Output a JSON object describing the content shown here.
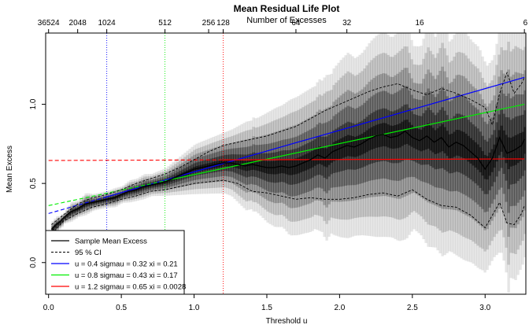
{
  "chart_data": {
    "type": "line",
    "title": "Mean Residual Life Plot",
    "subtitle": "Number of Excesses",
    "xlabel": "Threshold u",
    "ylabel": "Mean Excess",
    "xlim": [
      -0.02,
      3.28
    ],
    "ylim": [
      -0.2,
      1.45
    ],
    "x_ticks": [
      0.0,
      0.5,
      1.0,
      1.5,
      2.0,
      2.5,
      3.0
    ],
    "x_tick_labels": [
      "0.0",
      "0.5",
      "1.0",
      "1.5",
      "2.0",
      "2.5",
      "3.0"
    ],
    "y_ticks": [
      0.0,
      0.5,
      1.0
    ],
    "y_tick_labels": [
      "0.0",
      "0.5",
      "1.0"
    ],
    "top_axis": {
      "label": "Number of Excesses",
      "ticks": [
        {
          "x": 0.0,
          "label": "36524"
        },
        {
          "x": 0.2,
          "label": "2048"
        },
        {
          "x": 0.4,
          "label": "1024"
        },
        {
          "x": 0.8,
          "label": "512"
        },
        {
          "x": 1.1,
          "label": "256"
        },
        {
          "x": 1.2,
          "label": "128"
        },
        {
          "x": 1.7,
          "label": "64"
        },
        {
          "x": 2.05,
          "label": "32"
        },
        {
          "x": 2.55,
          "label": "16"
        },
        {
          "x": 3.27,
          "label": "6"
        }
      ]
    },
    "mean_excess": {
      "x": [
        0.02,
        0.05,
        0.08,
        0.1,
        0.15,
        0.2,
        0.25,
        0.3,
        0.35,
        0.4,
        0.45,
        0.5,
        0.55,
        0.6,
        0.65,
        0.7,
        0.75,
        0.8,
        0.85,
        0.9,
        0.95,
        1.0,
        1.05,
        1.1,
        1.15,
        1.2,
        1.25,
        1.3,
        1.35,
        1.4,
        1.45,
        1.5,
        1.55,
        1.6,
        1.65,
        1.7,
        1.75,
        1.8,
        1.85,
        1.9,
        1.95,
        2.0,
        2.05,
        2.1,
        2.15,
        2.2,
        2.25,
        2.3,
        2.35,
        2.4,
        2.45,
        2.5,
        2.55,
        2.6,
        2.65,
        2.7,
        2.75,
        2.8,
        2.85,
        2.9,
        2.95,
        3.0,
        3.05,
        3.1,
        3.15,
        3.2,
        3.25,
        3.27
      ],
      "y": [
        0.21,
        0.24,
        0.26,
        0.28,
        0.32,
        0.34,
        0.37,
        0.38,
        0.39,
        0.4,
        0.41,
        0.43,
        0.45,
        0.46,
        0.48,
        0.49,
        0.5,
        0.51,
        0.53,
        0.55,
        0.57,
        0.59,
        0.6,
        0.61,
        0.62,
        0.63,
        0.63,
        0.62,
        0.61,
        0.62,
        0.61,
        0.6,
        0.6,
        0.61,
        0.6,
        0.61,
        0.63,
        0.65,
        0.68,
        0.66,
        0.7,
        0.72,
        0.74,
        0.73,
        0.75,
        0.78,
        0.8,
        0.81,
        0.79,
        0.8,
        0.83,
        0.79,
        0.77,
        0.8,
        0.76,
        0.79,
        0.73,
        0.76,
        0.74,
        0.7,
        0.66,
        0.59,
        0.66,
        0.79,
        0.69,
        0.71,
        0.74,
        0.78
      ]
    },
    "ci_upper": {
      "x": [
        0.02,
        0.1,
        0.2,
        0.3,
        0.4,
        0.5,
        0.6,
        0.7,
        0.8,
        0.9,
        1.0,
        1.1,
        1.2,
        1.3,
        1.4,
        1.5,
        1.6,
        1.7,
        1.8,
        1.9,
        2.0,
        2.1,
        2.2,
        2.3,
        2.4,
        2.5,
        2.6,
        2.7,
        2.8,
        2.9,
        3.0,
        3.05,
        3.1,
        3.15,
        3.2,
        3.25,
        3.27
      ],
      "y": [
        0.24,
        0.3,
        0.37,
        0.41,
        0.43,
        0.46,
        0.5,
        0.53,
        0.56,
        0.6,
        0.65,
        0.7,
        0.74,
        0.76,
        0.78,
        0.8,
        0.83,
        0.86,
        0.91,
        0.96,
        1.0,
        1.04,
        1.08,
        1.11,
        1.13,
        1.09,
        1.06,
        1.1,
        1.07,
        1.03,
        0.98,
        0.87,
        1.07,
        1.2,
        1.07,
        1.13,
        1.17
      ]
    },
    "ci_lower": {
      "x": [
        0.02,
        0.1,
        0.2,
        0.3,
        0.4,
        0.5,
        0.6,
        0.7,
        0.8,
        0.9,
        1.0,
        1.1,
        1.2,
        1.3,
        1.4,
        1.5,
        1.6,
        1.7,
        1.8,
        1.9,
        2.0,
        2.1,
        2.2,
        2.3,
        2.4,
        2.5,
        2.6,
        2.7,
        2.8,
        2.9,
        3.0,
        3.05,
        3.1,
        3.15,
        3.2,
        3.25,
        3.27
      ],
      "y": [
        0.18,
        0.26,
        0.31,
        0.35,
        0.37,
        0.4,
        0.42,
        0.45,
        0.46,
        0.48,
        0.5,
        0.51,
        0.52,
        0.5,
        0.45,
        0.44,
        0.42,
        0.4,
        0.41,
        0.4,
        0.4,
        0.41,
        0.43,
        0.44,
        0.42,
        0.46,
        0.4,
        0.36,
        0.35,
        0.3,
        0.22,
        0.3,
        0.38,
        0.25,
        0.24,
        0.31,
        0.36
      ]
    },
    "fits": [
      {
        "name": "u = 0.4 sigmau = 0.32 xi = 0.21",
        "u": 0.4,
        "color": "#0000ff",
        "x0": 0.0,
        "y0": 0.31,
        "x1": 3.27,
        "y1": 1.17
      },
      {
        "name": "u = 0.8 sigmau = 0.43 xi = 0.17",
        "u": 0.8,
        "color": "#00ee00",
        "x0": 0.0,
        "y0": 0.36,
        "x1": 3.27,
        "y1": 1.0
      },
      {
        "name": "u = 1.2 sigmau = 0.65 xi = 0.0028",
        "u": 1.2,
        "color": "#ff0000",
        "x0": 0.0,
        "y0": 0.645,
        "x1": 3.27,
        "y1": 0.655
      }
    ],
    "legend": {
      "position": "bottom-left",
      "entries": [
        {
          "label": "Sample Mean Excess",
          "color": "#000000",
          "dash": "solid"
        },
        {
          "label": "95 % CI",
          "color": "#000000",
          "dash": "dashed"
        },
        {
          "label": "u = 0.4 sigmau = 0.32 xi = 0.21",
          "color": "#0000ff",
          "dash": "solid"
        },
        {
          "label": "u = 0.8 sigmau = 0.43 xi = 0.17",
          "color": "#00ee00",
          "dash": "solid"
        },
        {
          "label": "u = 1.2 sigmau = 0.65 xi = 0.0028",
          "color": "#ff0000",
          "dash": "solid"
        }
      ]
    },
    "grid": false
  }
}
